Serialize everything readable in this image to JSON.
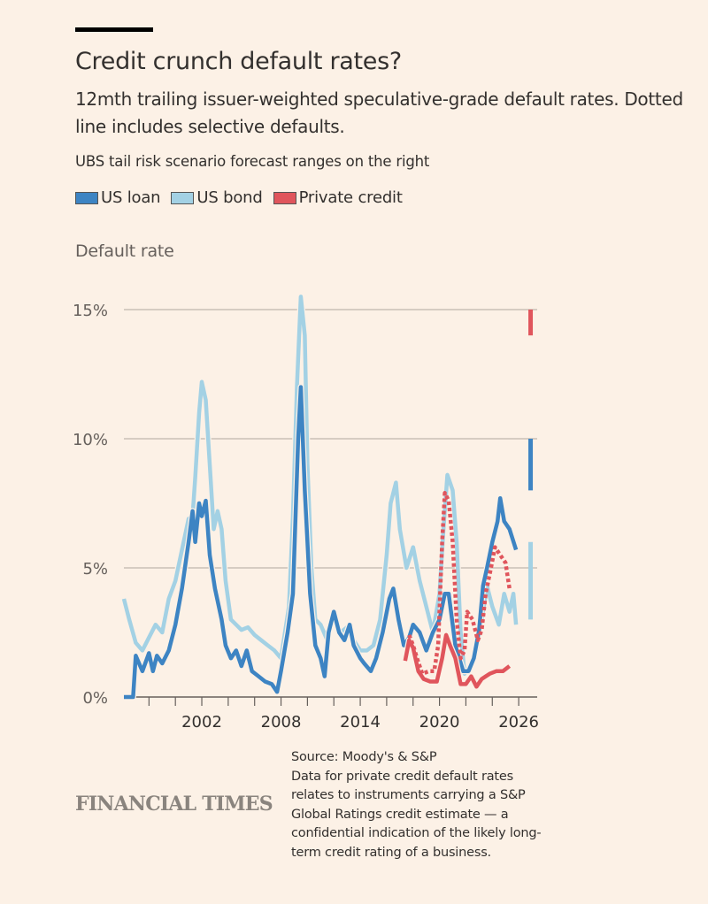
{
  "header": {
    "title": "Credit crunch default rates?",
    "subtitle": "12mth trailing issuer-weighted speculative-grade default rates. Dotted line includes selective defaults.",
    "note": "UBS tail risk scenario forecast ranges on the right"
  },
  "footer": {
    "logo": "FINANCIAL TIMES",
    "source": "Source: Moody's & S&P",
    "source_note": "Data for private credit default rates relates to instruments carrying a S&P Global Ratings credit estimate — a confidential indication of the likely long-term credit rating of a business."
  },
  "chart_data": {
    "type": "line",
    "ylabel": "Default rate",
    "xlabel": "",
    "xlim": [
      1996.1,
      2027.4
    ],
    "ylim": [
      0,
      15
    ],
    "y_ticks": [
      0,
      5,
      10,
      15
    ],
    "y_tick_labels": [
      "0%",
      "5%",
      "10%",
      "15%"
    ],
    "x_tick_years": [
      1998,
      2000,
      2002,
      2004,
      2006,
      2008,
      2010,
      2012,
      2014,
      2016,
      2018,
      2020,
      2022,
      2024,
      2026
    ],
    "x_tick_labels": [
      "2002",
      "2008",
      "2014",
      "2020",
      "2026"
    ],
    "x_tick_label_years": [
      2002,
      2008,
      2014,
      2020,
      2026
    ],
    "grid": true,
    "legend": [
      {
        "name": "US loan",
        "color": "#3d84c3"
      },
      {
        "name": "US bond",
        "color": "#a3d1e4"
      },
      {
        "name": "Private credit",
        "color": "#e0555c"
      }
    ],
    "series": [
      {
        "name": "US bond",
        "color": "#a3d1e4",
        "style": "solid",
        "x": [
          1996.1,
          1996.5,
          1997,
          1997.5,
          1998,
          1998.5,
          1999,
          1999.5,
          2000,
          2000.5,
          2001,
          2001.3,
          2001.5,
          2001.8,
          2002,
          2002.3,
          2002.6,
          2002.9,
          2003.2,
          2003.5,
          2003.8,
          2004.2,
          2004.6,
          2005,
          2005.5,
          2006,
          2006.5,
          2007,
          2007.5,
          2008,
          2008.3,
          2008.6,
          2008.9,
          2009.2,
          2009.5,
          2009.8,
          2010,
          2010.3,
          2010.6,
          2011,
          2011.5,
          2012,
          2012.5,
          2013,
          2013.5,
          2014,
          2014.5,
          2015,
          2015.5,
          2016,
          2016.3,
          2016.7,
          2017,
          2017.5,
          2018,
          2018.5,
          2019,
          2019.5,
          2020,
          2020.3,
          2020.6,
          2021,
          2021.3,
          2021.6,
          2021.9,
          2022.3,
          2022.8,
          2023.2,
          2023.6,
          2024,
          2024.5,
          2024.9,
          2025.3,
          2025.6,
          2025.8
        ],
        "y": [
          3.8,
          3.0,
          2.1,
          1.8,
          2.3,
          2.8,
          2.5,
          3.8,
          4.5,
          5.7,
          6.9,
          7.0,
          8.5,
          11.0,
          12.2,
          11.5,
          9.0,
          6.5,
          7.2,
          6.5,
          4.5,
          3.0,
          2.8,
          2.6,
          2.7,
          2.4,
          2.2,
          2.0,
          1.8,
          1.5,
          2.5,
          3.5,
          7.0,
          12.0,
          15.5,
          14.0,
          9.0,
          5.0,
          3.0,
          2.8,
          2.2,
          3.2,
          2.5,
          2.7,
          2.2,
          1.8,
          1.8,
          2.0,
          3.0,
          5.5,
          7.5,
          8.3,
          6.5,
          5.0,
          5.8,
          4.5,
          3.5,
          2.5,
          4.0,
          6.5,
          8.6,
          8.0,
          6.0,
          2.5,
          0.9,
          1.2,
          1.8,
          3.0,
          4.3,
          3.5,
          2.8,
          4.0,
          3.3,
          4.0,
          2.8
        ]
      },
      {
        "name": "US loan",
        "color": "#3d84c3",
        "style": "solid",
        "x": [
          1996.1,
          1996.8,
          1997,
          1997.5,
          1998,
          1998.3,
          1998.6,
          1999,
          1999.5,
          2000,
          2000.5,
          2001,
          2001.3,
          2001.5,
          2001.8,
          2002,
          2002.3,
          2002.6,
          2003,
          2003.5,
          2003.8,
          2004.2,
          2004.6,
          2005,
          2005.4,
          2005.8,
          2006.3,
          2006.8,
          2007.3,
          2007.7,
          2008,
          2008.5,
          2008.9,
          2009.3,
          2009.5,
          2009.8,
          2010.2,
          2010.6,
          2011,
          2011.3,
          2011.6,
          2012,
          2012.4,
          2012.8,
          2013.2,
          2013.5,
          2014,
          2014.3,
          2014.8,
          2015.2,
          2015.7,
          2016.2,
          2016.5,
          2016.9,
          2017.3,
          2017.7,
          2018,
          2018.5,
          2019,
          2019.5,
          2020,
          2020.4,
          2020.7,
          2021.2,
          2021.8,
          2022.2,
          2022.6,
          2023,
          2023.3,
          2023.6,
          2024,
          2024.4,
          2024.6,
          2024.9,
          2025.3,
          2025.8
        ],
        "y": [
          0,
          0,
          1.6,
          1.0,
          1.7,
          1.0,
          1.6,
          1.3,
          1.8,
          2.8,
          4.2,
          6.0,
          7.2,
          6.0,
          7.5,
          7.0,
          7.6,
          5.5,
          4.2,
          3.0,
          2.0,
          1.5,
          1.8,
          1.2,
          1.8,
          1.0,
          0.8,
          0.6,
          0.5,
          0.2,
          1.0,
          2.5,
          4.0,
          10.0,
          12.0,
          8.0,
          4.0,
          2.0,
          1.5,
          0.8,
          2.5,
          3.3,
          2.5,
          2.2,
          2.8,
          2.0,
          1.5,
          1.3,
          1.0,
          1.5,
          2.5,
          3.8,
          4.2,
          3.0,
          2.0,
          2.3,
          2.8,
          2.5,
          1.8,
          2.5,
          3.0,
          4.0,
          4.0,
          2.0,
          1.0,
          1.0,
          1.5,
          2.6,
          4.3,
          5.0,
          6.0,
          6.8,
          7.7,
          6.8,
          6.5,
          5.7
        ]
      },
      {
        "name": "Private credit",
        "color": "#e0555c",
        "style": "solid",
        "x": [
          2017.4,
          2017.7,
          2018,
          2018.4,
          2018.8,
          2019.3,
          2019.8,
          2020.2,
          2020.5,
          2020.8,
          2021.2,
          2021.6,
          2022,
          2022.4,
          2022.8,
          2023.2,
          2023.8,
          2024.3,
          2024.8,
          2025.3
        ],
        "y": [
          1.4,
          2.2,
          1.9,
          1.0,
          0.7,
          0.6,
          0.6,
          1.5,
          2.4,
          2.0,
          1.5,
          0.5,
          0.5,
          0.8,
          0.4,
          0.7,
          0.9,
          1.0,
          1.0,
          1.2
        ]
      },
      {
        "name": "Private credit (incl. selective defaults)",
        "color": "#e0555c",
        "style": "dotted",
        "x": [
          2017.7,
          2018,
          2018.3,
          2018.7,
          2019.2,
          2019.6,
          2019.9,
          2020.2,
          2020.4,
          2020.7,
          2021,
          2021.3,
          2021.6,
          2021.9,
          2022.1,
          2022.5,
          2022.9,
          2023.2,
          2023.5,
          2023.9,
          2024.2,
          2024.6,
          2025,
          2025.3
        ],
        "y": [
          2.4,
          2.0,
          1.5,
          0.9,
          1.0,
          1.0,
          2.0,
          6.0,
          7.9,
          7.6,
          6.0,
          3.0,
          1.5,
          1.8,
          3.3,
          3.0,
          2.2,
          2.6,
          4.0,
          5.0,
          5.8,
          5.5,
          5.2,
          4.2
        ]
      }
    ],
    "forecast_ranges": [
      {
        "name": "Private credit",
        "color": "#e0555c",
        "low": 14,
        "high": 15,
        "year": 2026.9
      },
      {
        "name": "US loan",
        "color": "#3d84c3",
        "low": 8,
        "high": 10,
        "year": 2026.9
      },
      {
        "name": "US bond",
        "color": "#a3d1e4",
        "low": 3,
        "high": 6,
        "year": 2026.9
      }
    ]
  }
}
